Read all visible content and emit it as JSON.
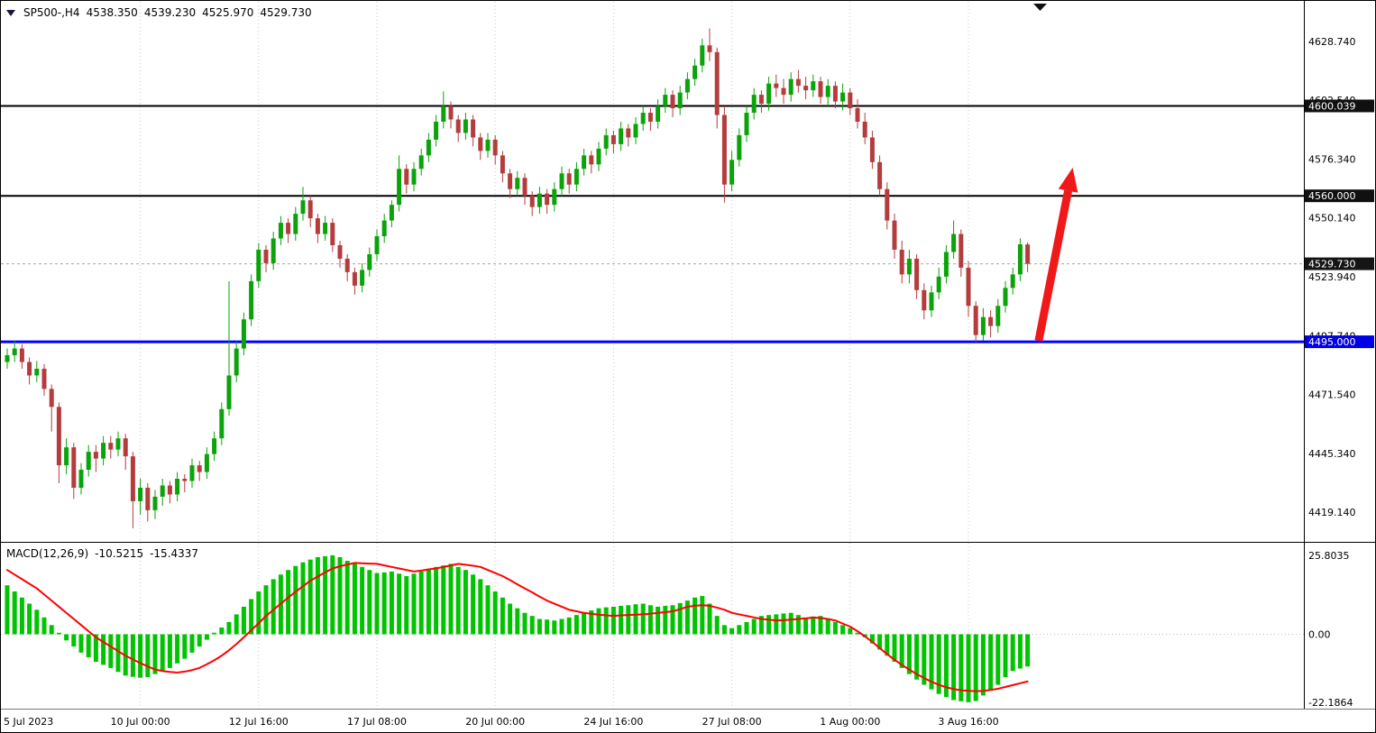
{
  "header": {
    "symbol_period": "SP500-,H4",
    "open": "4538.350",
    "high": "4539.230",
    "low": "4525.970",
    "close": "4529.730"
  },
  "macd_label": {
    "title": "MACD(12,26,9)",
    "main": "-10.5215",
    "signal": "-15.4337"
  },
  "colors": {
    "background": "#FFFFFF",
    "bull": "#0AA30A",
    "bear": "#B43C3C",
    "grid": "#C9C9C9",
    "macd_histogram": "#00C400",
    "macd_signal": "#FF0000",
    "support_line": "#0000FF",
    "resistance_line": "#000000",
    "current_price_line": "#A8A8A8",
    "current_price_box": "#151515",
    "resistance_box": "#101010",
    "support_box": "#0000E6",
    "arrow": "#F01818",
    "axis_text": "#000000",
    "box_text": "#FFFFFF"
  },
  "chart_data": {
    "type": "candlestick",
    "title": "SP500-,H4",
    "symbol": "SP500-",
    "timeframe": "H4",
    "ylim": [
      4406.3,
      4646.4
    ],
    "price_tick_labels": [
      "4628.740",
      "4602.540",
      "4576.340",
      "4550.140",
      "4523.940",
      "4497.740",
      "4471.540",
      "4445.340",
      "4419.140"
    ],
    "price_tick_values": [
      4628.74,
      4602.54,
      4576.34,
      4550.14,
      4523.94,
      4497.74,
      4471.54,
      4445.34,
      4419.14
    ],
    "time_ticks": [
      {
        "label": "5 Jul 2023",
        "bar": 0
      },
      {
        "label": "10 Jul 00:00",
        "bar": 18
      },
      {
        "label": "12 Jul 16:00",
        "bar": 34
      },
      {
        "label": "17 Jul 08:00",
        "bar": 50
      },
      {
        "label": "20 Jul 00:00",
        "bar": 66
      },
      {
        "label": "24 Jul 16:00",
        "bar": 82
      },
      {
        "label": "27 Jul 08:00",
        "bar": 98
      },
      {
        "label": "1 Aug 00:00",
        "bar": 114
      },
      {
        "label": "3 Aug 16:00",
        "bar": 130
      }
    ],
    "hlines": [
      {
        "price": 4600.039,
        "label": "4600.039",
        "color": "#000000",
        "width": 2,
        "name": "resistance-line-4600"
      },
      {
        "price": 4560.0,
        "label": "4560.000",
        "color": "#000000",
        "width": 2,
        "name": "resistance-line-4560"
      },
      {
        "price": 4495.0,
        "label": "4495.000",
        "color": "#0000FF",
        "width": 3,
        "name": "support-line-4495"
      }
    ],
    "current_price": {
      "value": 4529.73,
      "label": "4529.730"
    },
    "arrow": {
      "from_bar": 139.5,
      "from_price": 4495.5,
      "to_bar": 144.1,
      "to_price": 4572.5
    },
    "candles": [
      [
        4486,
        4492,
        4483,
        4489
      ],
      [
        4489,
        4495.5,
        4486,
        4492
      ],
      [
        4492,
        4494,
        4483,
        4486
      ],
      [
        4486,
        4488,
        4476,
        4480
      ],
      [
        4480,
        4486.5,
        4477,
        4483
      ],
      [
        4483,
        4485,
        4471,
        4474
      ],
      [
        4474,
        4476,
        4455,
        4466
      ],
      [
        4466,
        4468,
        4432,
        4440
      ],
      [
        4440,
        4452,
        4436,
        4448
      ],
      [
        4448,
        4450,
        4425,
        4430
      ],
      [
        4430,
        4441,
        4427,
        4438
      ],
      [
        4438,
        4449,
        4435,
        4446
      ],
      [
        4446,
        4449,
        4437,
        4443
      ],
      [
        4443,
        4453,
        4440,
        4450
      ],
      [
        4450,
        4453,
        4443,
        4447
      ],
      [
        4447,
        4455,
        4444,
        4452
      ],
      [
        4452,
        4454,
        4438,
        4444
      ],
      [
        4444,
        4446,
        4412,
        4424
      ],
      [
        4424,
        4434,
        4418,
        4430
      ],
      [
        4430,
        4432,
        4415,
        4420
      ],
      [
        4420,
        4429,
        4416,
        4426
      ],
      [
        4426,
        4434,
        4422,
        4431
      ],
      [
        4431,
        4433,
        4423,
        4427
      ],
      [
        4427,
        4437,
        4424,
        4434
      ],
      [
        4434,
        4436,
        4428,
        4433
      ],
      [
        4433,
        4443,
        4430,
        4440
      ],
      [
        4440,
        4442,
        4433,
        4437
      ],
      [
        4437,
        4448,
        4434,
        4445
      ],
      [
        4445,
        4455,
        4442,
        4452
      ],
      [
        4452,
        4468,
        4449,
        4465
      ],
      [
        4465,
        4522,
        4462,
        4480
      ],
      [
        4480,
        4495,
        4477,
        4492
      ],
      [
        4492,
        4508,
        4489,
        4505
      ],
      [
        4505,
        4525,
        4502,
        4522
      ],
      [
        4522,
        4539,
        4519,
        4536
      ],
      [
        4536,
        4538,
        4526,
        4530
      ],
      [
        4530,
        4544,
        4527,
        4541
      ],
      [
        4541,
        4551,
        4538,
        4548
      ],
      [
        4548,
        4550,
        4539,
        4543
      ],
      [
        4543,
        4555,
        4540,
        4552
      ],
      [
        4552,
        4564,
        4549,
        4558
      ],
      [
        4558,
        4560,
        4546,
        4550
      ],
      [
        4550,
        4552,
        4539,
        4543
      ],
      [
        4543,
        4551,
        4540,
        4548
      ],
      [
        4548,
        4550,
        4535,
        4538
      ],
      [
        4538,
        4540,
        4528,
        4532
      ],
      [
        4532,
        4534,
        4522,
        4526
      ],
      [
        4526,
        4528,
        4516,
        4520
      ],
      [
        4520,
        4530,
        4517,
        4527
      ],
      [
        4527,
        4537,
        4524,
        4534
      ],
      [
        4534,
        4545,
        4531,
        4542
      ],
      [
        4542,
        4552,
        4539,
        4549
      ],
      [
        4549,
        4558,
        4546,
        4556
      ],
      [
        4556,
        4578,
        4553,
        4572
      ],
      [
        4572,
        4574,
        4561,
        4565
      ],
      [
        4565,
        4575,
        4562,
        4572
      ],
      [
        4572,
        4581,
        4569,
        4578
      ],
      [
        4578,
        4588,
        4575,
        4585
      ],
      [
        4585,
        4596,
        4582,
        4593
      ],
      [
        4593,
        4606.5,
        4590,
        4600
      ],
      [
        4600,
        4602,
        4590,
        4594
      ],
      [
        4594,
        4596,
        4584,
        4588
      ],
      [
        4588,
        4597,
        4585,
        4594
      ],
      [
        4594,
        4596,
        4582,
        4586
      ],
      [
        4586,
        4588,
        4576,
        4580
      ],
      [
        4580,
        4588,
        4577,
        4585
      ],
      [
        4585,
        4587,
        4574,
        4578
      ],
      [
        4578,
        4580,
        4566,
        4570
      ],
      [
        4570,
        4572,
        4559,
        4563
      ],
      [
        4563,
        4571,
        4560,
        4568
      ],
      [
        4568,
        4570,
        4556,
        4560
      ],
      [
        4560,
        4562,
        4551,
        4555
      ],
      [
        4555,
        4564,
        4552,
        4561
      ],
      [
        4561,
        4563,
        4552,
        4556
      ],
      [
        4556,
        4566,
        4553,
        4563
      ],
      [
        4563,
        4573,
        4560,
        4570
      ],
      [
        4570,
        4572,
        4561,
        4565
      ],
      [
        4565,
        4575,
        4562,
        4572
      ],
      [
        4572,
        4581,
        4569,
        4578
      ],
      [
        4578,
        4580,
        4570,
        4574
      ],
      [
        4574,
        4584,
        4571,
        4581
      ],
      [
        4581,
        4590,
        4578,
        4587
      ],
      [
        4587,
        4589,
        4579,
        4583
      ],
      [
        4583,
        4593,
        4580,
        4590
      ],
      [
        4590,
        4592,
        4582,
        4586
      ],
      [
        4586,
        4595,
        4583,
        4592
      ],
      [
        4592,
        4600,
        4589,
        4597
      ],
      [
        4597,
        4599,
        4589,
        4593
      ],
      [
        4593,
        4603,
        4590,
        4600
      ],
      [
        4600,
        4608,
        4597,
        4605
      ],
      [
        4605,
        4607,
        4595,
        4599
      ],
      [
        4599,
        4609,
        4596,
        4606
      ],
      [
        4606,
        4615,
        4603,
        4612
      ],
      [
        4612,
        4621,
        4609,
        4618
      ],
      [
        4618,
        4630,
        4615,
        4627
      ],
      [
        4627,
        4634.5,
        4620,
        4624
      ],
      [
        4624,
        4626,
        4590,
        4596
      ],
      [
        4596,
        4600,
        4557,
        4565
      ],
      [
        4565,
        4580,
        4562,
        4576
      ],
      [
        4576,
        4590,
        4573,
        4587
      ],
      [
        4587,
        4600,
        4584,
        4597
      ],
      [
        4597,
        4608,
        4594,
        4605
      ],
      [
        4605,
        4607,
        4597,
        4601
      ],
      [
        4601,
        4613,
        4598,
        4610
      ],
      [
        4610,
        4614,
        4604,
        4608
      ],
      [
        4608,
        4612,
        4601,
        4605
      ],
      [
        4605,
        4615,
        4602,
        4612
      ],
      [
        4612,
        4616,
        4606,
        4609
      ],
      [
        4609,
        4613,
        4603,
        4607
      ],
      [
        4607,
        4614,
        4604,
        4611
      ],
      [
        4611,
        4613,
        4601,
        4604
      ],
      [
        4604,
        4612,
        4600,
        4609
      ],
      [
        4609,
        4611,
        4599,
        4602
      ],
      [
        4602,
        4610,
        4598,
        4606
      ],
      [
        4606,
        4608,
        4596,
        4599
      ],
      [
        4599,
        4603,
        4590,
        4593
      ],
      [
        4593,
        4597,
        4583,
        4586
      ],
      [
        4586,
        4589,
        4572,
        4575
      ],
      [
        4575,
        4578,
        4560,
        4563
      ],
      [
        4563,
        4566,
        4545,
        4549
      ],
      [
        4549,
        4552,
        4532,
        4536
      ],
      [
        4536,
        4540,
        4521,
        4525
      ],
      [
        4525,
        4536,
        4521,
        4532
      ],
      [
        4532,
        4534,
        4514,
        4518
      ],
      [
        4518,
        4521,
        4505,
        4509
      ],
      [
        4509,
        4520,
        4506,
        4517
      ],
      [
        4517,
        4528,
        4514,
        4524
      ],
      [
        4524,
        4538,
        4521,
        4535
      ],
      [
        4535,
        4549,
        4532,
        4543
      ],
      [
        4543,
        4545,
        4524,
        4528
      ],
      [
        4528,
        4531,
        4506,
        4511
      ],
      [
        4511,
        4513,
        4494.8,
        4498
      ],
      [
        4498,
        4510,
        4495.5,
        4506
      ],
      [
        4506,
        4509,
        4497,
        4502
      ],
      [
        4502,
        4514,
        4499,
        4511
      ],
      [
        4511,
        4522,
        4508,
        4519
      ],
      [
        4519,
        4528,
        4516,
        4525
      ],
      [
        4525,
        4541,
        4522,
        4538.4
      ],
      [
        4538.35,
        4539.23,
        4525.97,
        4529.73
      ]
    ],
    "macd": {
      "title": "MACD(12,26,9)",
      "params": [
        12,
        26,
        9
      ],
      "ylim": [
        -24.3,
        29.6
      ],
      "tick_labels": [
        "25.8035",
        "0.00",
        "-22.1864"
      ],
      "tick_values": [
        25.8035,
        0,
        -22.1864
      ],
      "last_main": -10.5215,
      "last_signal": -15.4337,
      "histogram": [
        16.0,
        14.0,
        12.0,
        10.0,
        8.0,
        5.5,
        3.0,
        0.5,
        -2.0,
        -4.0,
        -6.0,
        -7.5,
        -9.0,
        -10.0,
        -11.0,
        -12.3,
        -13.5,
        -13.9,
        -14.2,
        -14.0,
        -13.0,
        -12.0,
        -11.0,
        -9.5,
        -8.0,
        -6.0,
        -4.0,
        -1.8,
        0.5,
        2.2,
        4.0,
        6.5,
        9.0,
        11.5,
        14.0,
        16.0,
        18.0,
        19.5,
        21.0,
        22.3,
        23.5,
        24.4,
        25.2,
        25.5,
        25.8,
        25.2,
        24.0,
        23.2,
        22.0,
        21.0,
        20.0,
        20.2,
        20.5,
        19.8,
        19.0,
        19.8,
        20.5,
        21.3,
        22.0,
        22.5,
        23.0,
        22.0,
        21.0,
        19.5,
        18.0,
        16.0,
        14.0,
        12.0,
        10.0,
        8.5,
        7.0,
        6.0,
        5.0,
        4.8,
        4.5,
        5.0,
        5.5,
        6.3,
        7.0,
        7.8,
        8.5,
        8.8,
        9.0,
        9.3,
        9.5,
        9.8,
        10.0,
        9.5,
        9.0,
        9.3,
        9.5,
        10.2,
        11.0,
        12.0,
        12.5,
        10.0,
        6.0,
        3.0,
        2.0,
        3.0,
        4.0,
        5.0,
        6.0,
        6.3,
        6.5,
        6.8,
        7.0,
        6.3,
        5.5,
        5.8,
        6.0,
        5.0,
        4.0,
        3.0,
        2.0,
        0.5,
        -1.0,
        -3.0,
        -5.0,
        -7.0,
        -9.0,
        -11.0,
        -13.0,
        -14.8,
        -16.5,
        -18.0,
        -19.5,
        -20.5,
        -21.5,
        -21.9,
        -22.2,
        -21.8,
        -20.0,
        -18.3,
        -16.5,
        -14.0,
        -12.0,
        -11.2,
        -10.5215
      ],
      "signal": [
        21.0,
        19.5,
        18.0,
        16.5,
        15.0,
        13.0,
        11.0,
        9.0,
        7.0,
        5.0,
        3.0,
        1.0,
        -1.0,
        -2.5,
        -4.0,
        -5.5,
        -7.0,
        -8.2,
        -9.4,
        -10.5,
        -11.5,
        -12.0,
        -12.3,
        -12.5,
        -12.2,
        -11.7,
        -11.0,
        -9.8,
        -8.5,
        -7.0,
        -5.2,
        -3.2,
        -1.0,
        1.3,
        3.6,
        6.0,
        8.0,
        10.0,
        12.0,
        13.9,
        15.7,
        17.5,
        18.9,
        20.2,
        21.5,
        22.2,
        22.8,
        23.3,
        23.2,
        23.1,
        23.0,
        22.5,
        22.0,
        21.5,
        21.0,
        20.5,
        20.8,
        21.2,
        21.5,
        22.0,
        22.5,
        23.0,
        22.7,
        22.4,
        22.0,
        21.0,
        20.0,
        19.0,
        17.7,
        16.3,
        15.0,
        13.7,
        12.3,
        11.0,
        10.0,
        9.0,
        8.0,
        7.5,
        7.0,
        6.7,
        6.4,
        6.2,
        6.0,
        6.2,
        6.3,
        6.4,
        6.5,
        6.7,
        7.0,
        7.2,
        7.5,
        8.2,
        9.0,
        9.3,
        9.5,
        9.3,
        8.7,
        8.0,
        7.0,
        6.5,
        6.0,
        5.5,
        5.0,
        4.8,
        4.5,
        4.6,
        4.8,
        5.0,
        5.2,
        5.5,
        5.3,
        5.0,
        4.5,
        3.5,
        2.5,
        1.0,
        -0.7,
        -2.5,
        -4.5,
        -6.5,
        -8.3,
        -10.0,
        -11.5,
        -13.0,
        -14.3,
        -15.5,
        -16.5,
        -17.3,
        -17.9,
        -18.3,
        -18.5,
        -18.6,
        -18.5,
        -18.2,
        -17.8,
        -17.2,
        -16.6,
        -16.0,
        -15.4337
      ]
    }
  }
}
